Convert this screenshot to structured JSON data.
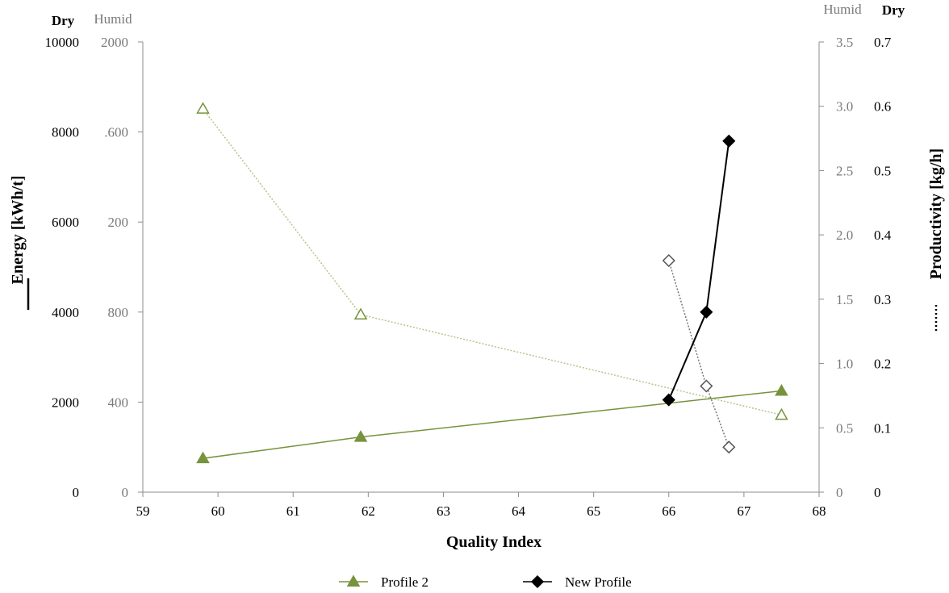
{
  "chart_data": {
    "type": "line",
    "xlabel": "Quality Index",
    "xlim": [
      59,
      68
    ],
    "xticks": [
      "59",
      "60",
      "61",
      "62",
      "63",
      "64",
      "65",
      "66",
      "67",
      "68"
    ],
    "left_axis": {
      "label": "Energy [kWh/t]",
      "dry": {
        "header": "Dry",
        "ylim": [
          0,
          10000
        ],
        "ticks": [
          "0",
          "2000",
          "4000",
          "6000",
          "8000",
          "10000"
        ]
      },
      "humid": {
        "header": "Humid",
        "ylim": [
          0,
          2000
        ],
        "ticks": [
          "0",
          "400",
          "800",
          "200",
          ".600",
          "2000"
        ]
      }
    },
    "right_axis": {
      "label": "Productivity [kg/h]",
      "humid": {
        "header": "Humid",
        "ylim": [
          0,
          3.5
        ],
        "ticks": [
          "0",
          "0.5",
          "1.0",
          "1.5",
          "2.0",
          "2.5",
          "3.0",
          "3.5"
        ]
      },
      "dry": {
        "header": "Dry",
        "ylim": [
          0,
          0.7
        ],
        "ticks": [
          "0",
          "0.1",
          "0.2",
          "0.3",
          "0.4",
          "0.5",
          "0.6",
          "0.7"
        ]
      }
    },
    "series": [
      {
        "name": "Profile 2",
        "metric": "energy",
        "axis": "left-humid",
        "marker": "triangle-filled",
        "color": "#77933c",
        "style": "solid",
        "x": [
          59.8,
          61.9,
          67.5
        ],
        "y": [
          150,
          245,
          450
        ]
      },
      {
        "metric": "productivity",
        "axis": "right-humid",
        "marker": "triangle-open",
        "color": "#77933c",
        "style": "dotted",
        "x": [
          59.8,
          61.9,
          67.5
        ],
        "y": [
          2.98,
          1.38,
          0.6
        ]
      },
      {
        "name": "New Profile",
        "metric": "energy",
        "axis": "left-dry",
        "marker": "diamond-filled",
        "color": "#000000",
        "style": "solid",
        "x": [
          66.0,
          66.5,
          66.8
        ],
        "y": [
          2050,
          4000,
          7800
        ]
      },
      {
        "metric": "productivity",
        "axis": "right-dry",
        "marker": "diamond-open",
        "color": "#555555",
        "style": "dotted",
        "x": [
          66.0,
          66.5,
          66.8
        ],
        "y": [
          0.36,
          0.165,
          0.07
        ]
      }
    ],
    "legend": {
      "placement": "bottom",
      "entries": [
        {
          "label": "Profile 2",
          "color": "#77933c",
          "marker": "triangle-filled"
        },
        {
          "label": "New Profile",
          "color": "#000000",
          "marker": "diamond-filled"
        }
      ]
    },
    "grid": false
  }
}
